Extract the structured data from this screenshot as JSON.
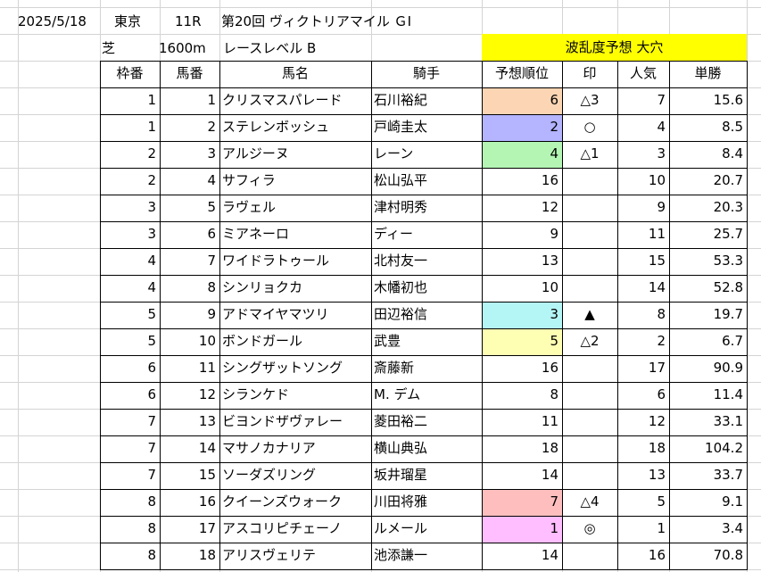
{
  "header_row1": {
    "date": "2025/5/18",
    "venue": "東京",
    "race_no": "11R",
    "race_name": "第20回 ヴィクトリアマイル ＧⅠ"
  },
  "header_row2": {
    "surface": "芝",
    "distance": "1600m",
    "race_level": "レースレベル B",
    "prediction_label": "波乱度予想 大穴"
  },
  "colors": {
    "highlight_yellow": "#ffff00",
    "grid": "#d4d4d4",
    "border": "#000000"
  },
  "table": {
    "headers": [
      "枠番",
      "馬番",
      "馬名",
      "騎手",
      "予想順位",
      "印",
      "人気",
      "単勝"
    ],
    "rows": [
      {
        "waku": "1",
        "umaban": "1",
        "name": "クリスマスパレード",
        "jockey": "石川裕紀",
        "rank": "6",
        "mark": "△3",
        "pop": "7",
        "odds": "15.6",
        "bg": "#fcd5b4"
      },
      {
        "waku": "1",
        "umaban": "2",
        "name": "ステレンボッシュ",
        "jockey": "戸崎圭太",
        "rank": "2",
        "mark": "○",
        "pop": "4",
        "odds": "8.5",
        "bg": "#b4b4ff"
      },
      {
        "waku": "2",
        "umaban": "3",
        "name": "アルジーヌ",
        "jockey": "レーン",
        "rank": "4",
        "mark": "△1",
        "pop": "3",
        "odds": "8.4",
        "bg": "#b4f5b4"
      },
      {
        "waku": "2",
        "umaban": "4",
        "name": "サフィラ",
        "jockey": "松山弘平",
        "rank": "16",
        "mark": "",
        "pop": "10",
        "odds": "20.7",
        "bg": ""
      },
      {
        "waku": "3",
        "umaban": "5",
        "name": "ラヴェル",
        "jockey": "津村明秀",
        "rank": "12",
        "mark": "",
        "pop": "9",
        "odds": "20.3",
        "bg": ""
      },
      {
        "waku": "3",
        "umaban": "6",
        "name": "ミアネーロ",
        "jockey": "ディー",
        "rank": "9",
        "mark": "",
        "pop": "11",
        "odds": "25.7",
        "bg": ""
      },
      {
        "waku": "4",
        "umaban": "7",
        "name": "ワイドラトゥール",
        "jockey": "北村友一",
        "rank": "13",
        "mark": "",
        "pop": "15",
        "odds": "53.3",
        "bg": ""
      },
      {
        "waku": "4",
        "umaban": "8",
        "name": "シンリョクカ",
        "jockey": "木幡初也",
        "rank": "10",
        "mark": "",
        "pop": "14",
        "odds": "52.8",
        "bg": ""
      },
      {
        "waku": "5",
        "umaban": "9",
        "name": "アドマイヤマツリ",
        "jockey": "田辺裕信",
        "rank": "3",
        "mark": "▲",
        "pop": "8",
        "odds": "19.7",
        "bg": "#b4f5f5"
      },
      {
        "waku": "5",
        "umaban": "10",
        "name": "ボンドガール",
        "jockey": "武豊",
        "rank": "5",
        "mark": "△2",
        "pop": "2",
        "odds": "6.7",
        "bg": "#ffffb4"
      },
      {
        "waku": "6",
        "umaban": "11",
        "name": "シングザットソング",
        "jockey": "斎藤新",
        "rank": "16",
        "mark": "",
        "pop": "17",
        "odds": "90.9",
        "bg": ""
      },
      {
        "waku": "6",
        "umaban": "12",
        "name": "シランケド",
        "jockey": "M. デム",
        "rank": "8",
        "mark": "",
        "pop": "6",
        "odds": "11.4",
        "bg": ""
      },
      {
        "waku": "7",
        "umaban": "13",
        "name": "ビヨンドザヴァレー",
        "jockey": "菱田裕二",
        "rank": "11",
        "mark": "",
        "pop": "12",
        "odds": "33.1",
        "bg": ""
      },
      {
        "waku": "7",
        "umaban": "14",
        "name": "マサノカナリア",
        "jockey": "横山典弘",
        "rank": "18",
        "mark": "",
        "pop": "18",
        "odds": "104.2",
        "bg": ""
      },
      {
        "waku": "7",
        "umaban": "15",
        "name": "ソーダズリング",
        "jockey": "坂井瑠星",
        "rank": "14",
        "mark": "",
        "pop": "13",
        "odds": "33.7",
        "bg": ""
      },
      {
        "waku": "8",
        "umaban": "16",
        "name": "クイーンズウォーク",
        "jockey": "川田将雅",
        "rank": "7",
        "mark": "△4",
        "pop": "5",
        "odds": "9.1",
        "bg": "#ffbebe"
      },
      {
        "waku": "8",
        "umaban": "17",
        "name": "アスコリピチェーノ",
        "jockey": "ルメール",
        "rank": "1",
        "mark": "◎",
        "pop": "1",
        "odds": "3.4",
        "bg": "#ffbeff"
      },
      {
        "waku": "8",
        "umaban": "18",
        "name": "アリスヴェリテ",
        "jockey": "池添謙一",
        "rank": "14",
        "mark": "",
        "pop": "16",
        "odds": "70.8",
        "bg": ""
      }
    ]
  }
}
